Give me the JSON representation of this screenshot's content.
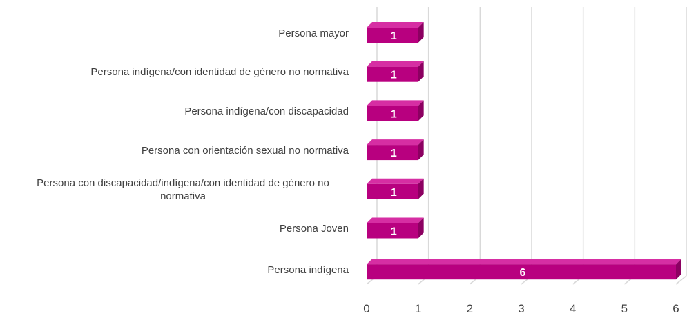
{
  "chart_data": {
    "type": "bar",
    "orientation": "horizontal",
    "categories": [
      "Persona mayor",
      "Persona indígena/con identidad de género no normativa",
      "Persona indígena/con discapacidad",
      "Persona con orientación sexual no normativa",
      "Persona con discapacidad/indígena/con identidad de género no normativa",
      "Persona Joven",
      "Persona indígena"
    ],
    "values": [
      1,
      1,
      1,
      1,
      1,
      1,
      6
    ],
    "color": "#b8007f",
    "xlim": [
      0,
      6
    ],
    "xticks": [
      0,
      1,
      2,
      3,
      4,
      5,
      6
    ],
    "grid": true
  }
}
